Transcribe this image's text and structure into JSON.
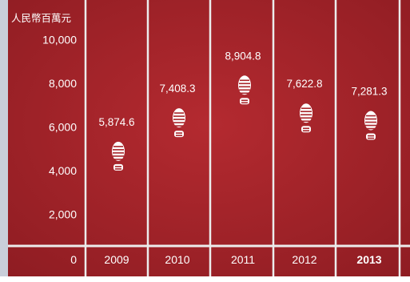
{
  "chart_data": {
    "type": "scatter",
    "title": "",
    "unit_label": "人民幣百萬元",
    "xlabel": "",
    "ylabel": "",
    "categories": [
      "2009",
      "2010",
      "2011",
      "2012",
      "2013"
    ],
    "values": [
      5874.6,
      7408.3,
      8904.8,
      7622.8,
      7281.3
    ],
    "value_labels": [
      "5,874.6",
      "7,408.3",
      "8,904.8",
      "7,622.8",
      "7,281.3"
    ],
    "y_ticks": [
      "2,000",
      "4,000",
      "6,000",
      "8,000",
      "10,000"
    ],
    "zero_label": "0",
    "ylim": [
      0,
      11300
    ],
    "highlight_category": "2013",
    "marker_icon": "shoe-print-icon",
    "grid": false,
    "legend": "none",
    "colors": {
      "background": "#a8242a",
      "lane_line": "#ececec",
      "text": "#ffffff",
      "side_strip": "#c9ced9"
    }
  }
}
